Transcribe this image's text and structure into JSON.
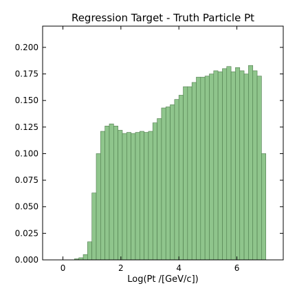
{
  "chart_data": {
    "type": "bar",
    "title": "Regression Target - Truth Particle Pt",
    "xlabel": "Log(Pt /[GeV/c])",
    "ylabel": "",
    "xlim": [
      -0.7,
      7.6
    ],
    "ylim": [
      0,
      0.22
    ],
    "xticks": [
      0,
      2,
      4,
      6
    ],
    "xtick_labels": [
      "0",
      "2",
      "4",
      "6"
    ],
    "yticks": [
      0,
      0.025,
      0.05,
      0.075,
      0.1,
      0.125,
      0.15,
      0.175,
      0.2
    ],
    "ytick_labels": [
      "0.000",
      "0.025",
      "0.050",
      "0.075",
      "0.100",
      "0.125",
      "0.150",
      "0.175",
      "0.200"
    ],
    "grid": false,
    "bin_width": 0.15,
    "bin_edges_start": -0.05,
    "values": [
      0.0,
      0.0,
      0.0,
      0.001,
      0.002,
      0.005,
      0.017,
      0.063,
      0.1,
      0.121,
      0.126,
      0.128,
      0.126,
      0.122,
      0.119,
      0.12,
      0.119,
      0.12,
      0.121,
      0.12,
      0.121,
      0.129,
      0.133,
      0.143,
      0.144,
      0.146,
      0.151,
      0.155,
      0.163,
      0.163,
      0.167,
      0.172,
      0.172,
      0.173,
      0.175,
      0.178,
      0.177,
      0.18,
      0.182,
      0.177,
      0.181,
      0.178,
      0.175,
      0.183,
      0.178,
      0.173,
      0.1
    ]
  }
}
